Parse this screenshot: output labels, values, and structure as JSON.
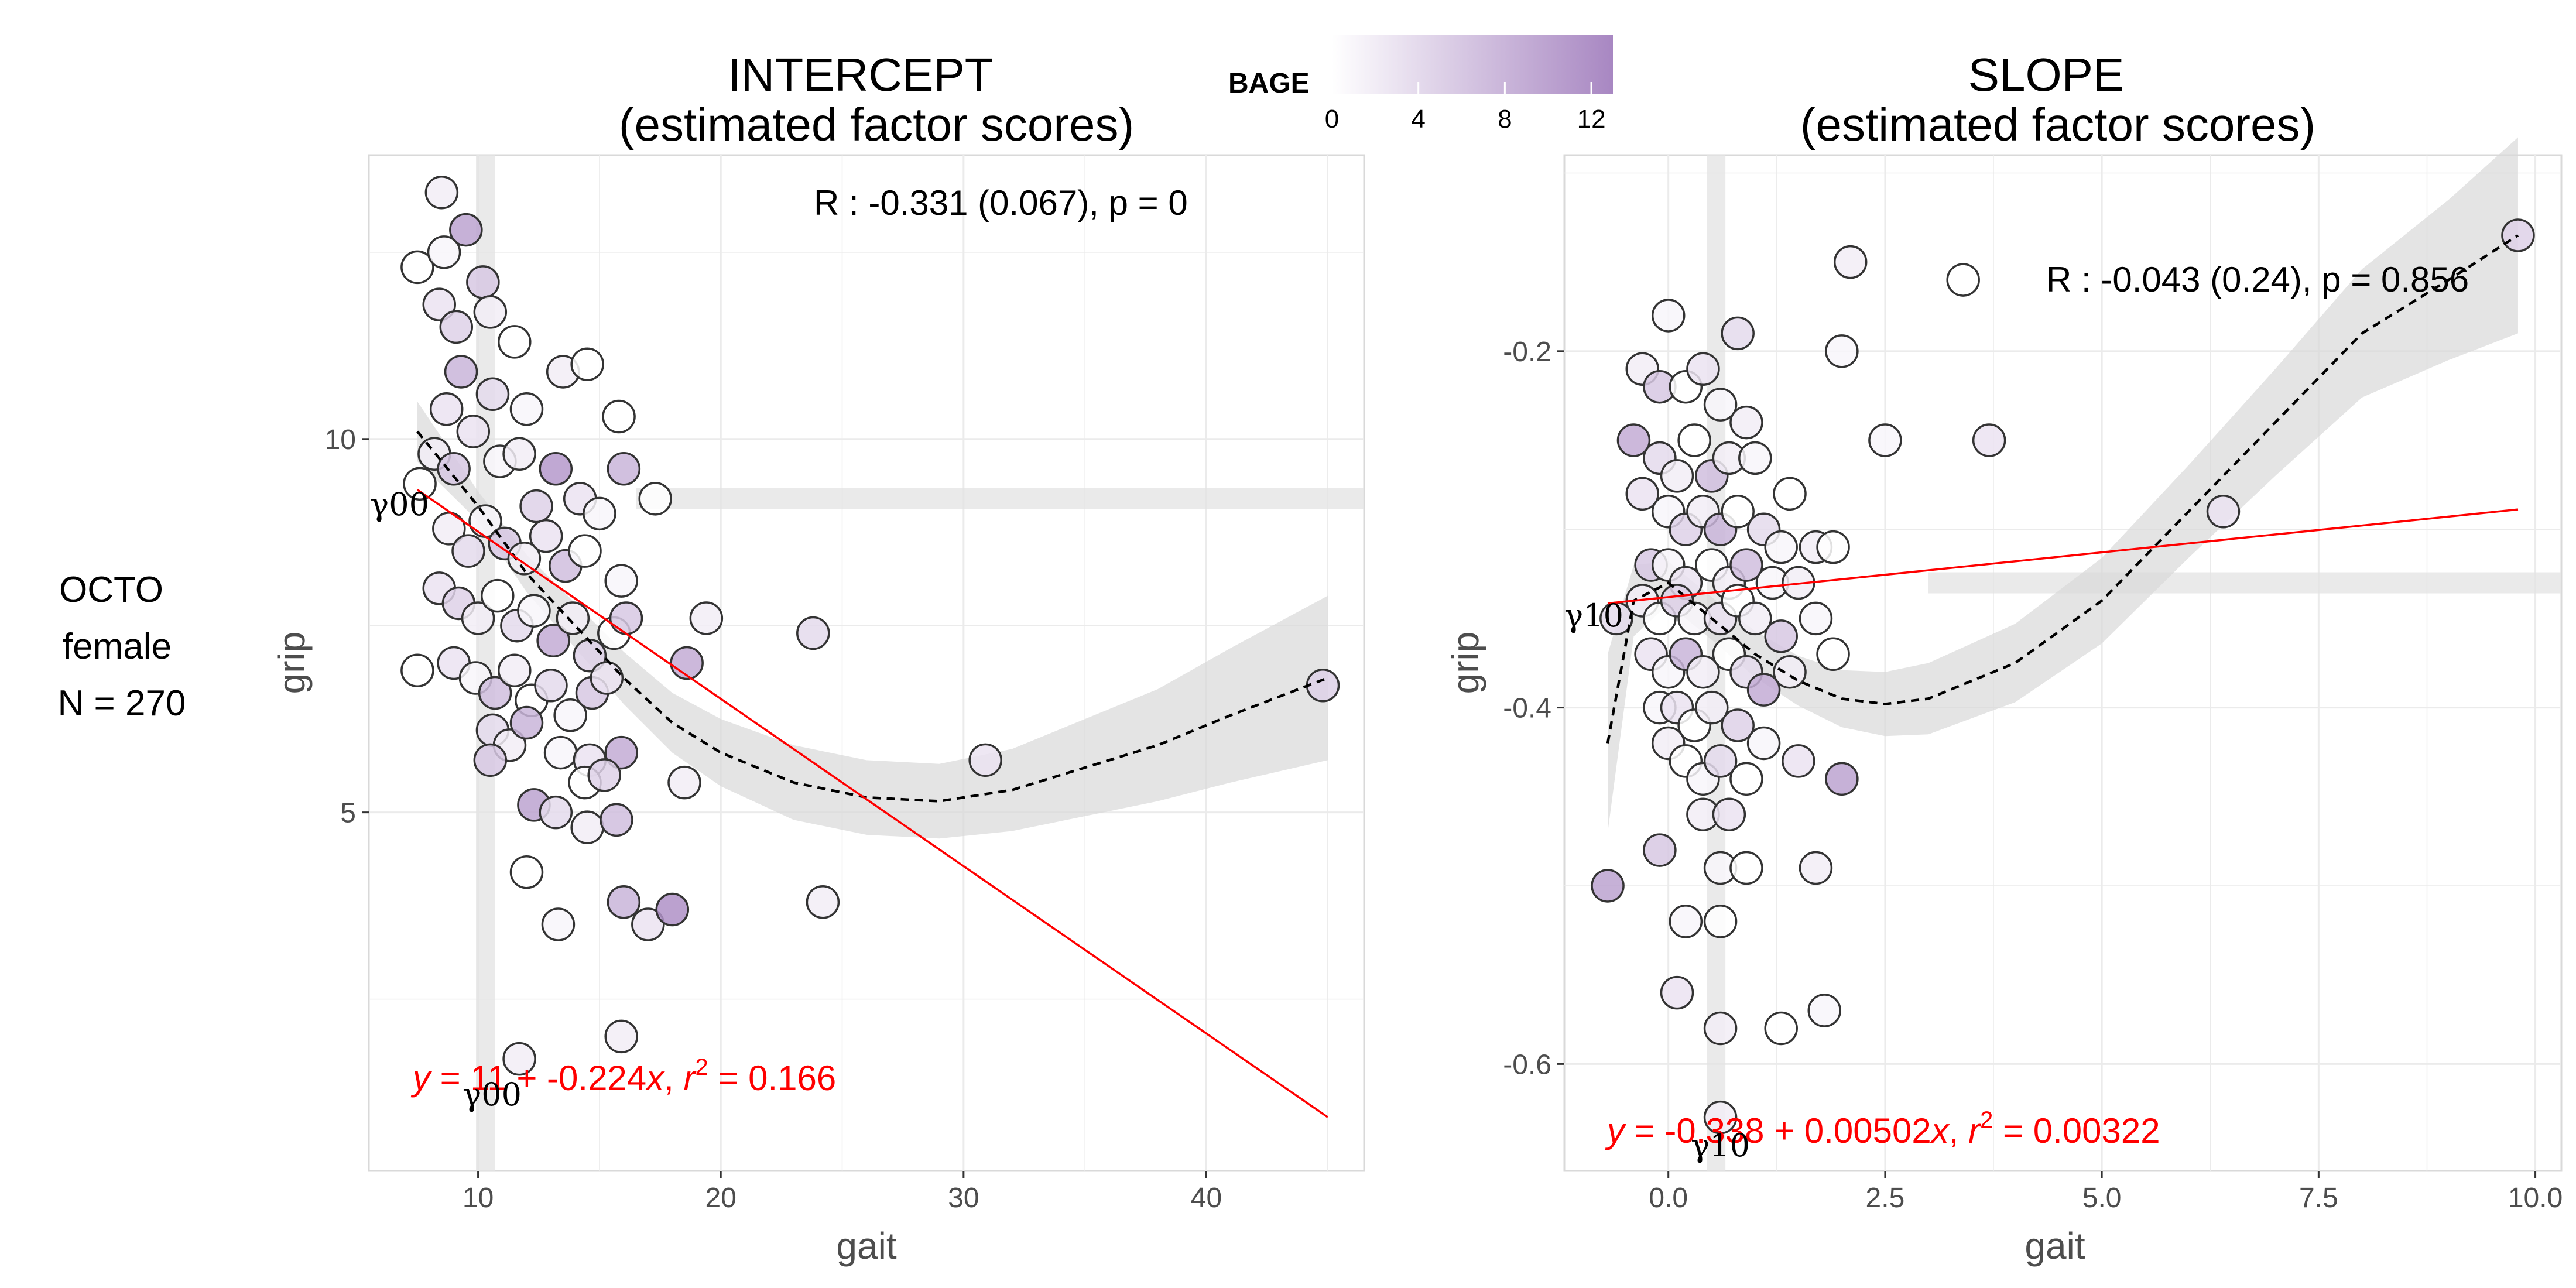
{
  "facet_label": [
    "OCTO",
    "female",
    "N = 270"
  ],
  "legend": {
    "title": "BAGE",
    "ticks": [
      0,
      4,
      8,
      12
    ],
    "range": [
      0,
      13
    ],
    "color_low": "#ffffff",
    "color_high": "#a887c2"
  },
  "colors": {
    "panel_bg": "#ffffff",
    "grid": "#ebebeb",
    "band": "#e3e3e3",
    "fit_line": "#ff0000",
    "loess_line": "#000000",
    "point_stroke": "#333333"
  },
  "panels": [
    {
      "title_line1": "INTERCEPT",
      "title_line2": "(estimated factor scores)",
      "correlation_text": "R : -0.331 (0.067), p = 0",
      "equation": {
        "y": "y",
        "eq1": " = 11 + -0.224",
        "x": "x",
        "sep": ",  ",
        "r": "r",
        "sup": "2",
        "tail": " = 0.166"
      },
      "gamma_labels": [
        "γ00",
        "γ00"
      ],
      "xlabel": "gait",
      "ylabel": "grip"
    },
    {
      "title_line1": "SLOPE",
      "title_line2": "(estimated factor scores)",
      "correlation_text": "R : -0.043 (0.24), p = 0.856",
      "equation": {
        "y": "y",
        "eq1": " = -0.338 + 0.00502",
        "x": "x",
        "sep": ",  ",
        "r": "r",
        "sup": "2",
        "tail": " = 0.00322"
      },
      "gamma_labels": [
        "γ10",
        "γ10"
      ],
      "xlabel": "gait",
      "ylabel": "grip"
    }
  ],
  "chart_data": [
    {
      "type": "scatter",
      "title": "INTERCEPT (estimated factor scores)",
      "xlabel": "gait",
      "ylabel": "grip",
      "xlim": [
        5.5,
        46.5
      ],
      "ylim": [
        0.2,
        13.8
      ],
      "xticks": [
        10,
        20,
        30,
        40
      ],
      "yticks": [
        5,
        10
      ],
      "grid": true,
      "mean_x": 10.3,
      "mean_y": 9.2,
      "fit": {
        "intercept": 11,
        "slope": -0.224,
        "r2": 0.166,
        "x_range": [
          7.5,
          45
        ]
      },
      "loess": {
        "x": [
          7.5,
          10,
          12,
          14,
          16,
          18,
          20,
          23,
          26,
          29,
          32,
          35,
          38,
          41,
          45
        ],
        "y": [
          10.1,
          9.1,
          8.2,
          7.5,
          6.8,
          6.2,
          5.8,
          5.4,
          5.2,
          5.15,
          5.3,
          5.6,
          5.9,
          6.3,
          6.8
        ],
        "band_halfwidth": [
          0.4,
          0.2,
          0.25,
          0.3,
          0.35,
          0.4,
          0.45,
          0.5,
          0.5,
          0.5,
          0.55,
          0.65,
          0.75,
          0.9,
          1.1
        ]
      },
      "points": [
        {
          "x": 8.5,
          "y": 13.3,
          "bage": 2
        },
        {
          "x": 9.5,
          "y": 12.8,
          "bage": 10
        },
        {
          "x": 7.5,
          "y": 12.3,
          "bage": 0
        },
        {
          "x": 8.6,
          "y": 12.5,
          "bage": 1
        },
        {
          "x": 10.2,
          "y": 12.1,
          "bage": 6
        },
        {
          "x": 8.4,
          "y": 11.8,
          "bage": 3
        },
        {
          "x": 9.1,
          "y": 11.5,
          "bage": 5
        },
        {
          "x": 10.5,
          "y": 11.7,
          "bage": 2
        },
        {
          "x": 11.5,
          "y": 11.3,
          "bage": 0
        },
        {
          "x": 12.0,
          "y": 10.4,
          "bage": 1
        },
        {
          "x": 13.5,
          "y": 10.9,
          "bage": 2
        },
        {
          "x": 14.5,
          "y": 11.0,
          "bage": 0
        },
        {
          "x": 9.3,
          "y": 10.9,
          "bage": 8
        },
        {
          "x": 10.6,
          "y": 10.6,
          "bage": 4
        },
        {
          "x": 8.7,
          "y": 10.4,
          "bage": 3
        },
        {
          "x": 8.2,
          "y": 9.8,
          "bage": 2
        },
        {
          "x": 7.6,
          "y": 9.4,
          "bage": 0
        },
        {
          "x": 9.0,
          "y": 9.6,
          "bage": 6
        },
        {
          "x": 9.8,
          "y": 10.1,
          "bage": 3
        },
        {
          "x": 10.9,
          "y": 9.7,
          "bage": 1
        },
        {
          "x": 11.7,
          "y": 9.8,
          "bage": 2
        },
        {
          "x": 12.4,
          "y": 9.1,
          "bage": 5
        },
        {
          "x": 13.2,
          "y": 9.6,
          "bage": 11
        },
        {
          "x": 14.2,
          "y": 9.2,
          "bage": 3
        },
        {
          "x": 15.0,
          "y": 9.0,
          "bage": 1
        },
        {
          "x": 15.8,
          "y": 10.3,
          "bage": 0
        },
        {
          "x": 16.0,
          "y": 9.6,
          "bage": 8
        },
        {
          "x": 17.3,
          "y": 9.2,
          "bage": 0
        },
        {
          "x": 8.8,
          "y": 8.8,
          "bage": 2
        },
        {
          "x": 9.6,
          "y": 8.5,
          "bage": 4
        },
        {
          "x": 10.3,
          "y": 8.9,
          "bage": 1
        },
        {
          "x": 11.1,
          "y": 8.6,
          "bage": 6
        },
        {
          "x": 11.9,
          "y": 8.4,
          "bage": 2
        },
        {
          "x": 12.8,
          "y": 8.7,
          "bage": 3
        },
        {
          "x": 13.6,
          "y": 8.3,
          "bage": 7
        },
        {
          "x": 14.4,
          "y": 8.5,
          "bage": 0
        },
        {
          "x": 15.9,
          "y": 8.1,
          "bage": 1
        },
        {
          "x": 8.4,
          "y": 8.0,
          "bage": 3
        },
        {
          "x": 9.2,
          "y": 7.8,
          "bage": 5
        },
        {
          "x": 10.0,
          "y": 7.6,
          "bage": 2
        },
        {
          "x": 10.8,
          "y": 7.9,
          "bage": 0
        },
        {
          "x": 11.6,
          "y": 7.5,
          "bage": 4
        },
        {
          "x": 12.3,
          "y": 7.7,
          "bage": 1
        },
        {
          "x": 13.1,
          "y": 7.3,
          "bage": 9
        },
        {
          "x": 13.9,
          "y": 7.6,
          "bage": 2
        },
        {
          "x": 14.6,
          "y": 7.1,
          "bage": 5
        },
        {
          "x": 15.6,
          "y": 7.4,
          "bage": 0
        },
        {
          "x": 16.1,
          "y": 7.6,
          "bage": 6
        },
        {
          "x": 19.4,
          "y": 7.6,
          "bage": 2
        },
        {
          "x": 23.8,
          "y": 7.4,
          "bage": 4
        },
        {
          "x": 18.6,
          "y": 7.0,
          "bage": 9
        },
        {
          "x": 7.5,
          "y": 6.9,
          "bage": 0
        },
        {
          "x": 9.0,
          "y": 7.0,
          "bage": 3
        },
        {
          "x": 9.9,
          "y": 6.8,
          "bage": 1
        },
        {
          "x": 10.7,
          "y": 6.6,
          "bage": 7
        },
        {
          "x": 11.5,
          "y": 6.9,
          "bage": 2
        },
        {
          "x": 12.2,
          "y": 6.5,
          "bage": 0
        },
        {
          "x": 13.0,
          "y": 6.7,
          "bage": 4
        },
        {
          "x": 13.8,
          "y": 6.3,
          "bage": 1
        },
        {
          "x": 14.7,
          "y": 6.6,
          "bage": 6
        },
        {
          "x": 15.3,
          "y": 6.8,
          "bage": 3
        },
        {
          "x": 10.6,
          "y": 6.1,
          "bage": 4
        },
        {
          "x": 11.3,
          "y": 5.9,
          "bage": 2
        },
        {
          "x": 12.0,
          "y": 6.2,
          "bage": 8
        },
        {
          "x": 10.5,
          "y": 5.7,
          "bage": 6
        },
        {
          "x": 13.4,
          "y": 5.8,
          "bage": 1
        },
        {
          "x": 14.6,
          "y": 5.7,
          "bage": 3
        },
        {
          "x": 15.9,
          "y": 5.8,
          "bage": 9
        },
        {
          "x": 14.4,
          "y": 5.4,
          "bage": 0
        },
        {
          "x": 15.2,
          "y": 5.5,
          "bage": 5
        },
        {
          "x": 18.5,
          "y": 5.4,
          "bage": 2
        },
        {
          "x": 12.3,
          "y": 5.1,
          "bage": 10
        },
        {
          "x": 13.2,
          "y": 5.0,
          "bage": 4
        },
        {
          "x": 14.5,
          "y": 4.8,
          "bage": 2
        },
        {
          "x": 15.7,
          "y": 4.9,
          "bage": 7
        },
        {
          "x": 30.9,
          "y": 5.7,
          "bage": 3
        },
        {
          "x": 12.0,
          "y": 4.2,
          "bage": 0
        },
        {
          "x": 13.3,
          "y": 3.5,
          "bage": 1
        },
        {
          "x": 16.0,
          "y": 3.8,
          "bage": 8
        },
        {
          "x": 17.0,
          "y": 3.5,
          "bage": 3
        },
        {
          "x": 18.0,
          "y": 3.7,
          "bage": 12
        },
        {
          "x": 24.2,
          "y": 3.8,
          "bage": 2
        },
        {
          "x": 11.7,
          "y": 1.7,
          "bage": 2
        },
        {
          "x": 15.9,
          "y": 2.0,
          "bage": 2
        },
        {
          "x": 44.8,
          "y": 6.7,
          "bage": 5
        }
      ]
    },
    {
      "type": "scatter",
      "title": "SLOPE (estimated factor scores)",
      "xlabel": "gait",
      "ylabel": "grip",
      "xlim": [
        -1.2,
        10.3
      ],
      "ylim": [
        -0.66,
        -0.09
      ],
      "xticks": [
        0.0,
        2.5,
        5.0,
        7.5,
        10.0
      ],
      "yticks": [
        -0.6,
        -0.4,
        -0.2
      ],
      "grid": true,
      "mean_x": 0.55,
      "mean_y": -0.33,
      "fit": {
        "intercept": -0.338,
        "slope": 0.00502,
        "r2": 0.00322,
        "x_range": [
          -0.7,
          9.8
        ]
      },
      "loess": {
        "x": [
          -0.7,
          -0.4,
          0.0,
          0.5,
          1.0,
          1.5,
          2.0,
          2.5,
          3.0,
          4.0,
          5.0,
          6.0,
          7.0,
          8.0,
          9.0,
          9.8
        ],
        "y": [
          -0.42,
          -0.34,
          -0.33,
          -0.35,
          -0.37,
          -0.385,
          -0.395,
          -0.398,
          -0.395,
          -0.375,
          -0.34,
          -0.29,
          -0.24,
          -0.19,
          -0.16,
          -0.135
        ],
        "band_halfwidth": [
          0.05,
          0.02,
          0.012,
          0.012,
          0.013,
          0.014,
          0.016,
          0.018,
          0.02,
          0.022,
          0.024,
          0.026,
          0.03,
          0.036,
          0.045,
          0.055
        ]
      },
      "points": [
        {
          "x": 0.0,
          "y": -0.18,
          "bage": 1
        },
        {
          "x": 0.8,
          "y": -0.19,
          "bage": 4
        },
        {
          "x": 2.1,
          "y": -0.15,
          "bage": 2
        },
        {
          "x": 3.4,
          "y": -0.16,
          "bage": 0
        },
        {
          "x": 9.8,
          "y": -0.135,
          "bage": 5
        },
        {
          "x": 2.0,
          "y": -0.2,
          "bage": 1
        },
        {
          "x": -0.3,
          "y": -0.21,
          "bage": 2
        },
        {
          "x": -0.1,
          "y": -0.22,
          "bage": 6
        },
        {
          "x": 0.2,
          "y": -0.22,
          "bage": 0
        },
        {
          "x": 0.4,
          "y": -0.21,
          "bage": 3
        },
        {
          "x": 0.6,
          "y": -0.23,
          "bage": 1
        },
        {
          "x": 0.9,
          "y": -0.24,
          "bage": 2
        },
        {
          "x": 2.5,
          "y": -0.25,
          "bage": 1
        },
        {
          "x": 3.7,
          "y": -0.25,
          "bage": 3
        },
        {
          "x": -0.4,
          "y": -0.25,
          "bage": 9
        },
        {
          "x": -0.1,
          "y": -0.26,
          "bage": 4
        },
        {
          "x": 0.1,
          "y": -0.27,
          "bage": 2
        },
        {
          "x": 0.3,
          "y": -0.25,
          "bage": 0
        },
        {
          "x": 0.5,
          "y": -0.27,
          "bage": 7
        },
        {
          "x": 0.7,
          "y": -0.26,
          "bage": 2
        },
        {
          "x": 1.0,
          "y": -0.26,
          "bage": 1
        },
        {
          "x": 1.4,
          "y": -0.28,
          "bage": 0
        },
        {
          "x": -0.3,
          "y": -0.28,
          "bage": 3
        },
        {
          "x": 0.0,
          "y": -0.29,
          "bage": 1
        },
        {
          "x": 0.2,
          "y": -0.3,
          "bage": 5
        },
        {
          "x": 0.4,
          "y": -0.29,
          "bage": 2
        },
        {
          "x": 0.6,
          "y": -0.3,
          "bage": 8
        },
        {
          "x": 0.8,
          "y": -0.29,
          "bage": 0
        },
        {
          "x": 1.1,
          "y": -0.3,
          "bage": 4
        },
        {
          "x": 1.3,
          "y": -0.31,
          "bage": 1
        },
        {
          "x": 1.7,
          "y": -0.31,
          "bage": 2
        },
        {
          "x": 1.9,
          "y": -0.31,
          "bage": 0
        },
        {
          "x": -0.2,
          "y": -0.32,
          "bage": 6
        },
        {
          "x": 0.0,
          "y": -0.32,
          "bage": 1
        },
        {
          "x": 0.2,
          "y": -0.33,
          "bage": 3
        },
        {
          "x": 0.5,
          "y": -0.32,
          "bage": 0
        },
        {
          "x": 0.7,
          "y": -0.33,
          "bage": 2
        },
        {
          "x": 0.9,
          "y": -0.32,
          "bage": 7
        },
        {
          "x": 1.2,
          "y": -0.33,
          "bage": 1
        },
        {
          "x": 1.5,
          "y": -0.33,
          "bage": 2
        },
        {
          "x": 6.4,
          "y": -0.29,
          "bage": 3
        },
        {
          "x": -0.6,
          "y": -0.35,
          "bage": 4
        },
        {
          "x": -0.3,
          "y": -0.34,
          "bage": 2
        },
        {
          "x": -0.1,
          "y": -0.35,
          "bage": 0
        },
        {
          "x": 0.1,
          "y": -0.34,
          "bage": 5
        },
        {
          "x": 0.3,
          "y": -0.35,
          "bage": 1
        },
        {
          "x": 0.6,
          "y": -0.35,
          "bage": 3
        },
        {
          "x": 0.8,
          "y": -0.34,
          "bage": 0
        },
        {
          "x": 1.0,
          "y": -0.35,
          "bage": 2
        },
        {
          "x": 1.3,
          "y": -0.36,
          "bage": 6
        },
        {
          "x": 1.7,
          "y": -0.35,
          "bage": 1
        },
        {
          "x": 1.9,
          "y": -0.37,
          "bage": 0
        },
        {
          "x": -0.2,
          "y": -0.37,
          "bage": 3
        },
        {
          "x": 0.0,
          "y": -0.38,
          "bage": 1
        },
        {
          "x": 0.2,
          "y": -0.37,
          "bage": 8
        },
        {
          "x": 0.4,
          "y": -0.38,
          "bage": 2
        },
        {
          "x": 0.7,
          "y": -0.37,
          "bage": 0
        },
        {
          "x": 0.9,
          "y": -0.38,
          "bage": 4
        },
        {
          "x": 1.1,
          "y": -0.39,
          "bage": 9
        },
        {
          "x": 1.4,
          "y": -0.38,
          "bage": 2
        },
        {
          "x": -0.1,
          "y": -0.4,
          "bage": 1
        },
        {
          "x": 0.1,
          "y": -0.4,
          "bage": 3
        },
        {
          "x": 0.3,
          "y": -0.41,
          "bage": 0
        },
        {
          "x": 0.5,
          "y": -0.4,
          "bage": 2
        },
        {
          "x": 0.8,
          "y": -0.41,
          "bage": 5
        },
        {
          "x": 1.1,
          "y": -0.42,
          "bage": 1
        },
        {
          "x": 1.5,
          "y": -0.43,
          "bage": 3
        },
        {
          "x": 0.0,
          "y": -0.42,
          "bage": 2
        },
        {
          "x": 0.2,
          "y": -0.43,
          "bage": 0
        },
        {
          "x": 0.4,
          "y": -0.44,
          "bage": 1
        },
        {
          "x": 0.6,
          "y": -0.43,
          "bage": 4
        },
        {
          "x": 0.9,
          "y": -0.44,
          "bage": 0
        },
        {
          "x": 2.0,
          "y": -0.44,
          "bage": 10
        },
        {
          "x": 0.4,
          "y": -0.46,
          "bage": 2
        },
        {
          "x": 0.7,
          "y": -0.46,
          "bage": 3
        },
        {
          "x": -0.7,
          "y": -0.5,
          "bage": 10
        },
        {
          "x": -0.1,
          "y": -0.48,
          "bage": 6
        },
        {
          "x": 0.6,
          "y": -0.49,
          "bage": 1
        },
        {
          "x": 0.9,
          "y": -0.49,
          "bage": 0
        },
        {
          "x": 1.7,
          "y": -0.49,
          "bage": 2
        },
        {
          "x": 0.2,
          "y": -0.52,
          "bage": 1
        },
        {
          "x": 0.6,
          "y": -0.52,
          "bage": 0
        },
        {
          "x": 0.1,
          "y": -0.56,
          "bage": 3
        },
        {
          "x": 0.6,
          "y": -0.58,
          "bage": 2
        },
        {
          "x": 1.3,
          "y": -0.58,
          "bage": 0
        },
        {
          "x": 1.8,
          "y": -0.57,
          "bage": 1
        },
        {
          "x": 0.6,
          "y": -0.63,
          "bage": 2
        }
      ]
    }
  ]
}
